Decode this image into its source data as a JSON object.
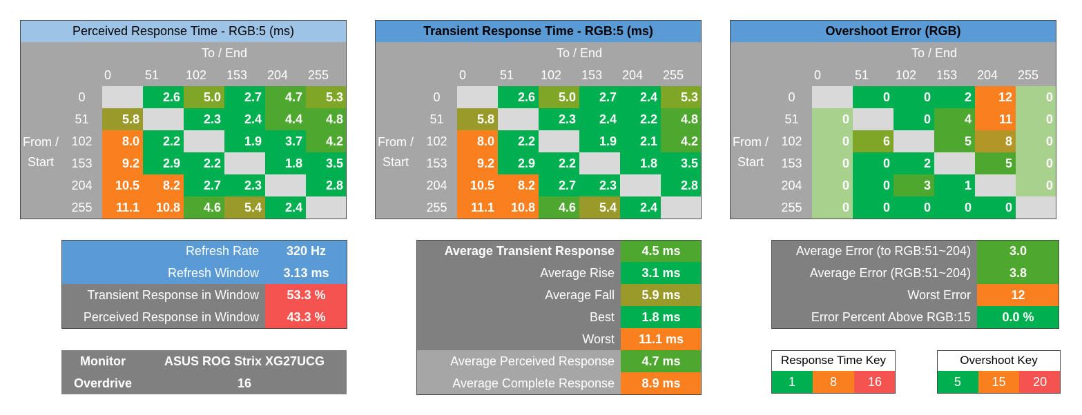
{
  "colors": {
    "title_light": "#9dc3e6",
    "title_blue": "#5b9bd5",
    "gray": "#a6a6a6",
    "gray_dark": "#808080",
    "diag": "#d9d9d9",
    "green_bright": "#00b050",
    "green_mid": "#4ea72e",
    "green_olive": "#7fa626",
    "olive": "#9a9a2a",
    "olive_dark": "#b39628",
    "orange": "#f97f1f",
    "red": "#f4534f",
    "pale_green": "#a9d18e"
  },
  "chart_data": [
    {
      "type": "heatmap",
      "title": "Perceived Response Time - RGB:5 (ms)",
      "col_header": "To / End",
      "row_header": "From / Start",
      "columns": [
        "0",
        "51",
        "102",
        "153",
        "204",
        "255"
      ],
      "rows": [
        "0",
        "51",
        "102",
        "153",
        "204",
        "255"
      ],
      "values": [
        [
          "",
          "2.6",
          "5.0",
          "2.7",
          "4.7",
          "5.3"
        ],
        [
          "5.8",
          "",
          "2.3",
          "2.4",
          "4.4",
          "4.8"
        ],
        [
          "8.0",
          "2.2",
          "",
          "1.9",
          "3.7",
          "4.2"
        ],
        [
          "9.2",
          "2.9",
          "2.2",
          "",
          "1.8",
          "3.5"
        ],
        [
          "10.5",
          "8.2",
          "2.7",
          "2.3",
          "",
          "2.8"
        ],
        [
          "11.1",
          "10.8",
          "4.6",
          "5.4",
          "2.4",
          ""
        ]
      ],
      "colors": [
        [
          "diag",
          "green_bright",
          "green_olive",
          "green_bright",
          "green_mid",
          "green_olive"
        ],
        [
          "olive",
          "diag",
          "green_bright",
          "green_bright",
          "green_mid",
          "green_mid"
        ],
        [
          "orange",
          "green_bright",
          "diag",
          "green_bright",
          "green_bright",
          "green_mid"
        ],
        [
          "orange",
          "green_bright",
          "green_bright",
          "diag",
          "green_bright",
          "green_bright"
        ],
        [
          "orange",
          "orange",
          "green_bright",
          "green_bright",
          "diag",
          "green_bright"
        ],
        [
          "orange",
          "orange",
          "green_mid",
          "olive",
          "green_bright",
          "diag"
        ]
      ]
    },
    {
      "type": "heatmap",
      "title": "Transient Response Time - RGB:5 (ms)",
      "col_header": "To / End",
      "row_header": "From / Start",
      "columns": [
        "0",
        "51",
        "102",
        "153",
        "204",
        "255"
      ],
      "rows": [
        "0",
        "51",
        "102",
        "153",
        "204",
        "255"
      ],
      "values": [
        [
          "",
          "2.6",
          "5.0",
          "2.7",
          "2.4",
          "5.3"
        ],
        [
          "5.8",
          "",
          "2.3",
          "2.4",
          "2.2",
          "4.8"
        ],
        [
          "8.0",
          "2.2",
          "",
          "1.9",
          "2.1",
          "4.2"
        ],
        [
          "9.2",
          "2.9",
          "2.2",
          "",
          "1.8",
          "3.5"
        ],
        [
          "10.5",
          "8.2",
          "2.7",
          "2.3",
          "",
          "2.8"
        ],
        [
          "11.1",
          "10.8",
          "4.6",
          "5.4",
          "2.4",
          ""
        ]
      ],
      "colors": [
        [
          "diag",
          "green_bright",
          "green_olive",
          "green_bright",
          "green_bright",
          "green_olive"
        ],
        [
          "olive",
          "diag",
          "green_bright",
          "green_bright",
          "green_bright",
          "green_mid"
        ],
        [
          "orange",
          "green_bright",
          "diag",
          "green_bright",
          "green_bright",
          "green_mid"
        ],
        [
          "orange",
          "green_bright",
          "green_bright",
          "diag",
          "green_bright",
          "green_bright"
        ],
        [
          "orange",
          "orange",
          "green_bright",
          "green_bright",
          "diag",
          "green_bright"
        ],
        [
          "orange",
          "orange",
          "green_mid",
          "olive",
          "green_bright",
          "diag"
        ]
      ]
    },
    {
      "type": "heatmap",
      "title": "Overshoot Error (RGB)",
      "col_header": "To / End",
      "row_header": "From / Start",
      "columns": [
        "0",
        "51",
        "102",
        "153",
        "204",
        "255"
      ],
      "rows": [
        "0",
        "51",
        "102",
        "153",
        "204",
        "255"
      ],
      "values": [
        [
          "",
          "0",
          "0",
          "2",
          "12",
          "0"
        ],
        [
          "0",
          "",
          "0",
          "4",
          "11",
          "0"
        ],
        [
          "0",
          "6",
          "",
          "5",
          "8",
          "0"
        ],
        [
          "0",
          "0",
          "2",
          "",
          "5",
          "0"
        ],
        [
          "0",
          "0",
          "3",
          "1",
          "",
          "0"
        ],
        [
          "0",
          "0",
          "0",
          "0",
          "0",
          ""
        ]
      ],
      "colors": [
        [
          "diag",
          "green_bright",
          "green_bright",
          "green_bright",
          "orange",
          "pale_green"
        ],
        [
          "pale_green",
          "diag",
          "green_bright",
          "green_mid",
          "orange",
          "pale_green"
        ],
        [
          "pale_green",
          "green_olive",
          "diag",
          "green_mid",
          "olive_dark",
          "pale_green"
        ],
        [
          "pale_green",
          "green_bright",
          "green_bright",
          "diag",
          "green_mid",
          "pale_green"
        ],
        [
          "pale_green",
          "green_bright",
          "green_mid",
          "green_bright",
          "diag",
          "pale_green"
        ],
        [
          "pale_green",
          "green_bright",
          "green_bright",
          "green_bright",
          "green_bright",
          "diag"
        ]
      ]
    }
  ],
  "refresh_table": {
    "rows": [
      {
        "label": "Refresh Rate",
        "value": "320 Hz",
        "label_color": "title_blue",
        "value_color": "title_blue"
      },
      {
        "label": "Refresh Window",
        "value": "3.13 ms",
        "label_color": "title_blue",
        "value_color": "title_blue"
      },
      {
        "label": "Transient Response in Window",
        "value": "53.3 %",
        "label_color": "gray_dark",
        "value_color": "red"
      },
      {
        "label": "Perceived Response in Window",
        "value": "43.3 %",
        "label_color": "gray_dark",
        "value_color": "red"
      }
    ]
  },
  "monitor_table": {
    "monitor_label": "Monitor",
    "monitor_value": "ASUS ROG Strix XG27UCG",
    "overdrive_label": "Overdrive",
    "overdrive_value": "16"
  },
  "averages_table": {
    "rows": [
      {
        "label": "Average Transient Response",
        "value": "4.5 ms",
        "bold_label": true,
        "value_color": "green_mid"
      },
      {
        "label": "Average Rise",
        "value": "3.1 ms",
        "bold_label": false,
        "value_color": "green_bright"
      },
      {
        "label": "Average Fall",
        "value": "5.9 ms",
        "bold_label": false,
        "value_color": "olive"
      },
      {
        "label": "Best",
        "value": "1.8 ms",
        "bold_label": false,
        "value_color": "green_bright"
      },
      {
        "label": "Worst",
        "value": "11.1 ms",
        "bold_label": false,
        "value_color": "orange"
      },
      {
        "label": "Average Perceived Response",
        "value": "4.7 ms",
        "bold_label": false,
        "value_color": "green_mid"
      },
      {
        "label": "Average Complete Response",
        "value": "8.9 ms",
        "bold_label": false,
        "value_color": "orange"
      }
    ]
  },
  "error_table": {
    "rows": [
      {
        "label": "Average Error (to RGB:51~204)",
        "value": "3.0",
        "value_color": "green_mid"
      },
      {
        "label": "Average Error (RGB:51~204)",
        "value": "3.8",
        "value_color": "green_mid"
      },
      {
        "label": "Worst Error",
        "value": "12",
        "value_color": "orange"
      },
      {
        "label": "Error Percent Above RGB:15",
        "value": "0.0 %",
        "value_color": "green_bright"
      }
    ]
  },
  "response_key": {
    "title": "Response Time Key",
    "items": [
      {
        "label": "1",
        "color": "green_bright"
      },
      {
        "label": "8",
        "color": "orange"
      },
      {
        "label": "16",
        "color": "red"
      }
    ]
  },
  "overshoot_key": {
    "title": "Overshoot Key",
    "items": [
      {
        "label": "5",
        "color": "green_bright"
      },
      {
        "label": "15",
        "color": "orange"
      },
      {
        "label": "20",
        "color": "red"
      }
    ]
  }
}
